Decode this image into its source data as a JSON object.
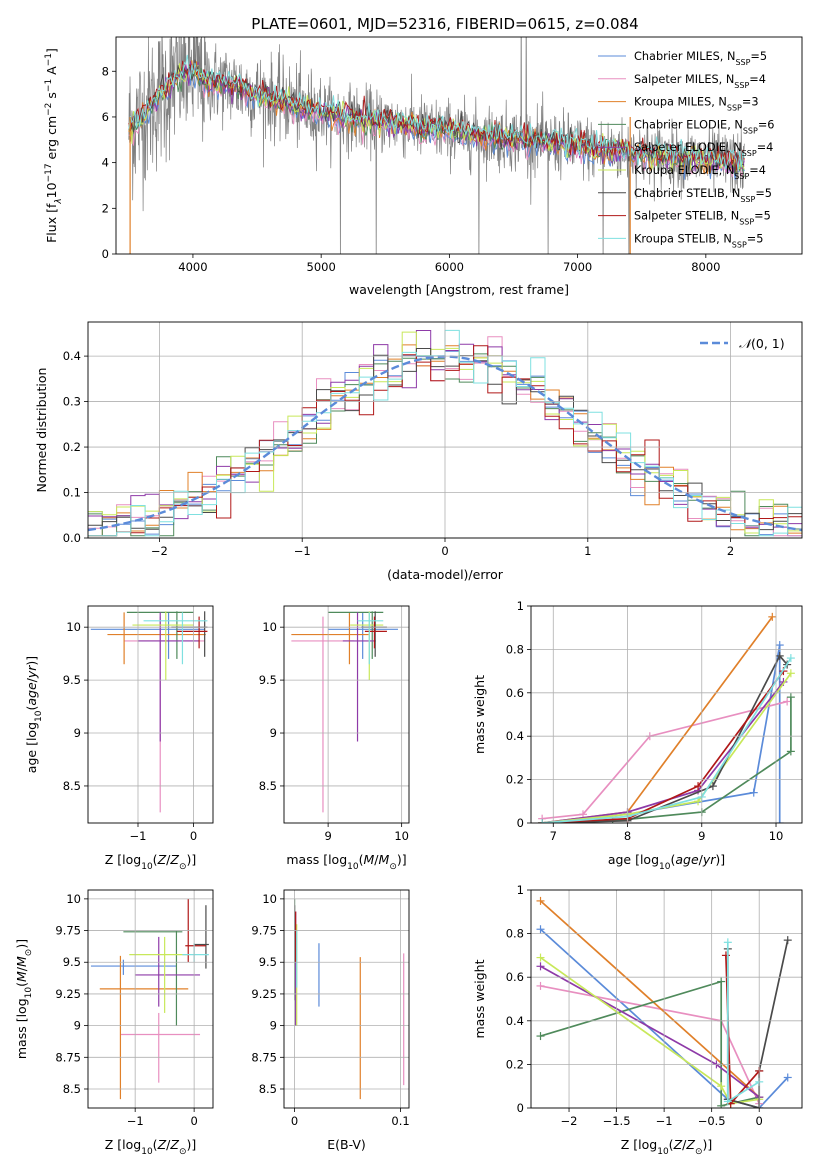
{
  "figure": {
    "title": "PLATE=0601, MJD=52316, FIBERID=0615, z=0.084"
  },
  "colors": {
    "chabrier_miles": "#5b8bd9",
    "salpeter_miles": "#e88fc0",
    "kroupa_miles": "#e0802a",
    "chabrier_elodie": "#4f8a5b",
    "salpeter_elodie": "#8e3aa8",
    "kroupa_elodie": "#c8e85a",
    "chabrier_stelib": "#4a4a4a",
    "salpeter_stelib": "#b01818",
    "kroupa_stelib": "#7fe0e0",
    "data_spectrum": "#7f7f7f",
    "normal_curve": "#5b8bd9"
  },
  "chart_data": [
    {
      "type": "line",
      "title": "PLATE=0601, MJD=52316, FIBERID=0615, z=0.084",
      "xlabel": "wavelength [Angstrom, rest frame]",
      "ylabel": "Flux [fλ10⁻¹⁷ erg cm⁻² s⁻¹ A⁻¹]",
      "xlim": [
        3400,
        8750
      ],
      "ylim": [
        0,
        9.5
      ],
      "xticks": [
        4000,
        5000,
        6000,
        7000,
        8000
      ],
      "yticks": [
        0,
        2,
        4,
        6,
        8
      ],
      "legend_position": "top-right",
      "continuum_knots": {
        "x": [
          3500,
          3600,
          3700,
          3800,
          3900,
          4000,
          4100,
          4300,
          4500,
          4700,
          4900,
          5100,
          5300,
          5500,
          5800,
          6200,
          6600,
          7000,
          7500,
          8000,
          8300
        ],
        "y": [
          5.5,
          6.0,
          6.7,
          7.3,
          7.9,
          8.0,
          7.6,
          7.4,
          7.0,
          6.7,
          6.3,
          6.1,
          5.9,
          5.8,
          5.5,
          5.2,
          5.0,
          4.7,
          4.4,
          4.1,
          3.9
        ]
      },
      "series": [
        {
          "name": "Chabrier MILES, N$_{SSP}$=5",
          "label_main": "Chabrier MILES, N",
          "label_sub": "SSP",
          "label_tail": "=5",
          "color_key": "chabrier_miles"
        },
        {
          "name": "Salpeter MILES, N$_{SSP}$=4",
          "label_main": "Salpeter MILES, N",
          "label_sub": "SSP",
          "label_tail": "=4",
          "color_key": "salpeter_miles"
        },
        {
          "name": "Kroupa MILES, N$_{SSP}$=3",
          "label_main": "Kroupa MILES, N",
          "label_sub": "SSP",
          "label_tail": "=3",
          "color_key": "kroupa_miles"
        },
        {
          "name": "Chabrier ELODIE, N$_{SSP}$=6",
          "label_main": "Chabrier ELODIE, N",
          "label_sub": "SSP",
          "label_tail": "=6",
          "color_key": "chabrier_elodie"
        },
        {
          "name": "Salpeter ELODIE, N$_{SSP}$=4",
          "label_main": "Salpeter ELODIE, N",
          "label_sub": "SSP",
          "label_tail": "=4",
          "color_key": "salpeter_elodie"
        },
        {
          "name": "Kroupa ELODIE, N$_{SSP}$=4",
          "label_main": "Kroupa ELODIE, N",
          "label_sub": "SSP",
          "label_tail": "=4",
          "color_key": "kroupa_elodie"
        },
        {
          "name": "Chabrier STELIB, N$_{SSP}$=5",
          "label_main": "Chabrier STELIB, N",
          "label_sub": "SSP",
          "label_tail": "=5",
          "color_key": "chabrier_stelib"
        },
        {
          "name": "Salpeter STELIB, N$_{SSP}$=5",
          "label_main": "Salpeter STELIB, N",
          "label_sub": "SSP",
          "label_tail": "=5",
          "color_key": "salpeter_stelib"
        },
        {
          "name": "Kroupa STELIB, N$_{SSP}$=5",
          "label_main": "Kroupa STELIB, N",
          "label_sub": "SSP",
          "label_tail": "=5",
          "color_key": "kroupa_stelib"
        }
      ]
    },
    {
      "type": "histogram",
      "xlabel": "(data-model)/error",
      "ylabel": "Normed distribution",
      "xlim": [
        -2.5,
        2.5
      ],
      "ylim": [
        0,
        0.475
      ],
      "xticks": [
        -2,
        -1,
        0,
        1,
        2
      ],
      "yticks": [
        0.0,
        0.1,
        0.2,
        0.3,
        0.4
      ],
      "grid": true,
      "bin_width": 0.1,
      "legend": {
        "label": "N(0,1)",
        "position": "top-right"
      },
      "reference_curve": {
        "name": "N(0,1)",
        "mean": 0,
        "sigma": 1
      }
    },
    {
      "type": "scatter",
      "xlabel": "Z [log10(Z/Z☉)]",
      "ylabel": "age  [log10(age/yr)]",
      "xlim": [
        -1.9,
        0.35
      ],
      "ylim": [
        8.15,
        10.2
      ],
      "xticks": [
        -1,
        0
      ],
      "yticks": [
        8.5,
        9.0,
        9.5,
        10.0
      ],
      "grid": true,
      "points": [
        {
          "x": -0.45,
          "xerr_lo": -1.85,
          "xerr_hi": 0.2,
          "y": 9.98,
          "yerr_lo": 9.7,
          "yerr_hi": 10.14,
          "color_key": "chabrier_miles"
        },
        {
          "x": -0.6,
          "xerr_lo": -1.25,
          "xerr_hi": 0.2,
          "y": 9.87,
          "yerr_lo": 8.25,
          "yerr_hi": 10.1,
          "color_key": "salpeter_miles"
        },
        {
          "x": -1.25,
          "xerr_lo": -1.55,
          "xerr_hi": 0.22,
          "y": 9.93,
          "yerr_lo": 9.65,
          "yerr_hi": 10.14,
          "color_key": "kroupa_miles"
        },
        {
          "x": -0.3,
          "xerr_lo": -1.2,
          "xerr_hi": 0.0,
          "y": 10.14,
          "yerr_lo": 9.7,
          "yerr_hi": 10.15,
          "color_key": "chabrier_elodie"
        },
        {
          "x": -0.6,
          "xerr_lo": -1.0,
          "xerr_hi": 0.1,
          "y": 9.87,
          "yerr_lo": 8.92,
          "yerr_hi": 10.14,
          "color_key": "salpeter_elodie"
        },
        {
          "x": -0.5,
          "xerr_lo": -1.1,
          "xerr_hi": 0.0,
          "y": 10.02,
          "yerr_lo": 9.5,
          "yerr_hi": 10.15,
          "color_key": "kroupa_elodie"
        },
        {
          "x": 0.2,
          "xerr_lo": -0.4,
          "xerr_hi": 0.25,
          "y": 10.0,
          "yerr_lo": 9.72,
          "yerr_hi": 10.15,
          "color_key": "chabrier_stelib"
        },
        {
          "x": 0.1,
          "xerr_lo": -0.3,
          "xerr_hi": 0.25,
          "y": 9.96,
          "yerr_lo": 9.8,
          "yerr_hi": 10.1,
          "color_key": "salpeter_stelib"
        },
        {
          "x": -0.2,
          "xerr_lo": -0.9,
          "xerr_hi": 0.25,
          "y": 10.06,
          "yerr_lo": 9.65,
          "yerr_hi": 10.14,
          "color_key": "kroupa_stelib"
        }
      ]
    },
    {
      "type": "scatter",
      "xlabel": "mass [log10(M/M☉)]",
      "ylabel": "",
      "xlim": [
        8.4,
        10.1
      ],
      "ylim": [
        8.15,
        10.2
      ],
      "xticks": [
        9,
        10
      ],
      "yticks": [
        8.5,
        9.0,
        9.5,
        10.0
      ],
      "grid": true,
      "points": [
        {
          "x": 9.47,
          "xerr_lo": 9.0,
          "xerr_hi": 9.95,
          "y": 9.98,
          "yerr_lo": 9.7,
          "yerr_hi": 10.14,
          "color_key": "chabrier_miles"
        },
        {
          "x": 8.93,
          "xerr_lo": 8.5,
          "xerr_hi": 9.35,
          "y": 9.87,
          "yerr_lo": 8.25,
          "yerr_hi": 10.1,
          "color_key": "salpeter_miles"
        },
        {
          "x": 9.29,
          "xerr_lo": 8.5,
          "xerr_hi": 9.55,
          "y": 9.93,
          "yerr_lo": 9.65,
          "yerr_hi": 10.14,
          "color_key": "kroupa_miles"
        },
        {
          "x": 9.6,
          "xerr_lo": 9.0,
          "xerr_hi": 9.75,
          "y": 10.14,
          "yerr_lo": 9.7,
          "yerr_hi": 10.15,
          "color_key": "chabrier_elodie"
        },
        {
          "x": 9.4,
          "xerr_lo": 9.2,
          "xerr_hi": 9.65,
          "y": 9.87,
          "yerr_lo": 8.92,
          "yerr_hi": 10.14,
          "color_key": "salpeter_elodie"
        },
        {
          "x": 9.56,
          "xerr_lo": 9.3,
          "xerr_hi": 9.75,
          "y": 10.02,
          "yerr_lo": 9.5,
          "yerr_hi": 10.15,
          "color_key": "kroupa_elodie"
        },
        {
          "x": 9.64,
          "xerr_lo": 9.45,
          "xerr_hi": 9.8,
          "y": 10.0,
          "yerr_lo": 9.72,
          "yerr_hi": 10.15,
          "color_key": "chabrier_stelib"
        },
        {
          "x": 9.63,
          "xerr_lo": 9.5,
          "xerr_hi": 9.8,
          "y": 9.96,
          "yerr_lo": 9.8,
          "yerr_hi": 10.1,
          "color_key": "salpeter_stelib"
        },
        {
          "x": 9.56,
          "xerr_lo": 9.4,
          "xerr_hi": 9.75,
          "y": 10.06,
          "yerr_lo": 9.65,
          "yerr_hi": 10.14,
          "color_key": "kroupa_stelib"
        }
      ]
    },
    {
      "type": "line",
      "xlabel": "age  [log10(age/yr)]",
      "ylabel": "mass weight",
      "xlim": [
        6.7,
        10.35
      ],
      "ylim": [
        0.0,
        1.0
      ],
      "xticks": [
        7,
        8,
        9,
        10
      ],
      "yticks": [
        0.0,
        0.2,
        0.4,
        0.6,
        0.8,
        1.0
      ],
      "grid": true,
      "series": [
        {
          "color_key": "chabrier_miles",
          "x": [
            6.85,
            8.0,
            9.7,
            10.05,
            10.05
          ],
          "y": [
            0.0,
            0.04,
            0.14,
            0.82,
            0.0
          ]
        },
        {
          "color_key": "salpeter_miles",
          "x": [
            6.85,
            7.4,
            8.3,
            10.15
          ],
          "y": [
            0.02,
            0.04,
            0.4,
            0.56
          ]
        },
        {
          "color_key": "kroupa_miles",
          "x": [
            6.85,
            8.0,
            9.95
          ],
          "y": [
            0.0,
            0.05,
            0.95
          ]
        },
        {
          "color_key": "chabrier_elodie",
          "x": [
            6.85,
            7.8,
            9.0,
            10.2,
            10.2
          ],
          "y": [
            0.0,
            0.01,
            0.05,
            0.33,
            0.58
          ]
        },
        {
          "color_key": "salpeter_elodie",
          "x": [
            6.85,
            8.0,
            8.95,
            10.1
          ],
          "y": [
            0.0,
            0.05,
            0.15,
            0.65
          ]
        },
        {
          "color_key": "kroupa_elodie",
          "x": [
            6.85,
            8.0,
            8.95,
            10.2
          ],
          "y": [
            0.0,
            0.04,
            0.1,
            0.69
          ]
        },
        {
          "color_key": "chabrier_stelib",
          "x": [
            6.85,
            8.0,
            9.15,
            10.05,
            10.15
          ],
          "y": [
            0.0,
            0.01,
            0.17,
            0.77,
            0.73
          ]
        },
        {
          "color_key": "salpeter_stelib",
          "x": [
            6.85,
            8.0,
            8.95,
            10.1
          ],
          "y": [
            0.0,
            0.02,
            0.17,
            0.7
          ]
        },
        {
          "color_key": "kroupa_stelib",
          "x": [
            6.85,
            8.0,
            9.0,
            10.2
          ],
          "y": [
            0.0,
            0.03,
            0.12,
            0.76
          ]
        }
      ]
    },
    {
      "type": "scatter",
      "xlabel": "Z [log10(Z/Z☉)]",
      "ylabel": "mass [log10(M/M☉)]",
      "xlim": [
        -1.8,
        0.32
      ],
      "ylim": [
        8.35,
        10.07
      ],
      "xticks": [
        -1,
        0
      ],
      "yticks": [
        8.5,
        8.75,
        9.0,
        9.25,
        9.5,
        9.75,
        10.0
      ],
      "grid": true,
      "points": [
        {
          "x": -1.2,
          "xerr_lo": -1.75,
          "xerr_hi": -0.3,
          "y": 9.47,
          "yerr_lo": 9.4,
          "yerr_hi": 9.52,
          "color_key": "chabrier_miles"
        },
        {
          "x": -0.6,
          "xerr_lo": -1.25,
          "xerr_hi": 0.1,
          "y": 8.93,
          "yerr_lo": 8.55,
          "yerr_hi": 9.1,
          "color_key": "salpeter_miles"
        },
        {
          "x": -1.25,
          "xerr_lo": -1.6,
          "xerr_hi": -0.1,
          "y": 9.29,
          "yerr_lo": 8.42,
          "yerr_hi": 9.55,
          "color_key": "kroupa_miles"
        },
        {
          "x": -0.3,
          "xerr_lo": -1.2,
          "xerr_hi": -0.2,
          "y": 9.74,
          "yerr_lo": 9.0,
          "yerr_hi": 9.75,
          "color_key": "chabrier_elodie"
        },
        {
          "x": -0.6,
          "xerr_lo": -1.0,
          "xerr_hi": 0.1,
          "y": 9.4,
          "yerr_lo": 9.15,
          "yerr_hi": 9.7,
          "color_key": "salpeter_elodie"
        },
        {
          "x": -0.5,
          "xerr_lo": -1.1,
          "xerr_hi": -0.1,
          "y": 9.56,
          "yerr_lo": 9.1,
          "yerr_hi": 9.7,
          "color_key": "kroupa_elodie"
        },
        {
          "x": 0.2,
          "xerr_lo": 0.0,
          "xerr_hi": 0.25,
          "y": 9.64,
          "yerr_lo": 9.45,
          "yerr_hi": 9.95,
          "color_key": "chabrier_stelib"
        },
        {
          "x": -0.1,
          "xerr_lo": -0.15,
          "xerr_hi": 0.2,
          "y": 9.63,
          "yerr_lo": 9.5,
          "yerr_hi": 10.0,
          "color_key": "salpeter_stelib"
        },
        {
          "x": 0.0,
          "xerr_lo": -0.2,
          "xerr_hi": 0.25,
          "y": 9.56,
          "yerr_lo": 9.5,
          "yerr_hi": 9.65,
          "color_key": "kroupa_stelib"
        }
      ]
    },
    {
      "type": "scatter",
      "xlabel": "E(B-V)",
      "ylabel": "",
      "xlim": [
        -0.01,
        0.108
      ],
      "ylim": [
        8.35,
        10.07
      ],
      "xticks": [
        0.0,
        0.1
      ],
      "yticks": [
        8.5,
        8.75,
        9.0,
        9.25,
        9.5,
        9.75,
        10.0
      ],
      "grid": true,
      "points": [
        {
          "x": 0.023,
          "y": 9.47,
          "yerr_lo": 9.15,
          "yerr_hi": 9.65,
          "color_key": "chabrier_miles"
        },
        {
          "x": 0.103,
          "y": 8.93,
          "yerr_lo": 8.53,
          "yerr_hi": 9.57,
          "color_key": "salpeter_miles"
        },
        {
          "x": 0.062,
          "y": 9.29,
          "yerr_lo": 8.42,
          "yerr_hi": 9.54,
          "color_key": "kroupa_miles"
        },
        {
          "x": 0.0,
          "y": 9.74,
          "yerr_lo": 9.2,
          "yerr_hi": 10.0,
          "color_key": "chabrier_elodie"
        },
        {
          "x": 0.001,
          "y": 9.4,
          "yerr_lo": 9.0,
          "yerr_hi": 9.9,
          "color_key": "salpeter_elodie"
        },
        {
          "x": 0.002,
          "y": 9.56,
          "yerr_lo": 9.0,
          "yerr_hi": 9.8,
          "color_key": "kroupa_elodie"
        },
        {
          "x": 0.0,
          "y": 9.64,
          "yerr_lo": 9.5,
          "yerr_hi": 9.95,
          "color_key": "chabrier_stelib"
        },
        {
          "x": 0.001,
          "y": 9.63,
          "yerr_lo": 9.5,
          "yerr_hi": 9.9,
          "color_key": "salpeter_stelib"
        },
        {
          "x": 0.002,
          "y": 9.56,
          "yerr_lo": 9.3,
          "yerr_hi": 9.75,
          "color_key": "kroupa_stelib"
        }
      ]
    },
    {
      "type": "line",
      "xlabel": "Z [log10(Z/Z☉)]",
      "ylabel": "mass weight",
      "xlim": [
        -2.4,
        0.45
      ],
      "ylim": [
        0.0,
        1.0
      ],
      "xticks": [
        -2.0,
        -1.5,
        -1.0,
        -0.5,
        0.0
      ],
      "yticks": [
        0.0,
        0.2,
        0.4,
        0.6,
        0.8,
        1.0
      ],
      "grid": true,
      "series": [
        {
          "color_key": "chabrier_miles",
          "x": [
            -2.3,
            -0.33,
            0.0,
            0.3
          ],
          "y": [
            0.82,
            0.04,
            0.0,
            0.14
          ]
        },
        {
          "color_key": "salpeter_miles",
          "x": [
            -2.3,
            -0.4,
            0.0
          ],
          "y": [
            0.56,
            0.4,
            0.02
          ]
        },
        {
          "color_key": "kroupa_miles",
          "x": [
            -2.3,
            0.0
          ],
          "y": [
            0.95,
            0.05
          ]
        },
        {
          "color_key": "chabrier_elodie",
          "x": [
            -2.3,
            -0.4,
            -0.4,
            0.0
          ],
          "y": [
            0.33,
            0.58,
            0.01,
            0.05
          ]
        },
        {
          "color_key": "salpeter_elodie",
          "x": [
            -2.3,
            -0.45,
            0.0
          ],
          "y": [
            0.65,
            0.2,
            0.05
          ]
        },
        {
          "color_key": "kroupa_elodie",
          "x": [
            -2.3,
            -0.4,
            -0.3,
            0.0
          ],
          "y": [
            0.69,
            0.1,
            0.02,
            0.04
          ]
        },
        {
          "color_key": "chabrier_stelib",
          "x": [
            -0.33,
            -0.33,
            0.0,
            0.0,
            0.3
          ],
          "y": [
            0.73,
            0.04,
            0.0,
            0.17,
            0.77
          ]
        },
        {
          "color_key": "salpeter_stelib",
          "x": [
            -0.35,
            -0.3,
            0.0
          ],
          "y": [
            0.7,
            0.02,
            0.17
          ]
        },
        {
          "color_key": "kroupa_stelib",
          "x": [
            -0.33,
            -0.33,
            0.0
          ],
          "y": [
            0.76,
            0.03,
            0.12
          ]
        }
      ]
    }
  ]
}
